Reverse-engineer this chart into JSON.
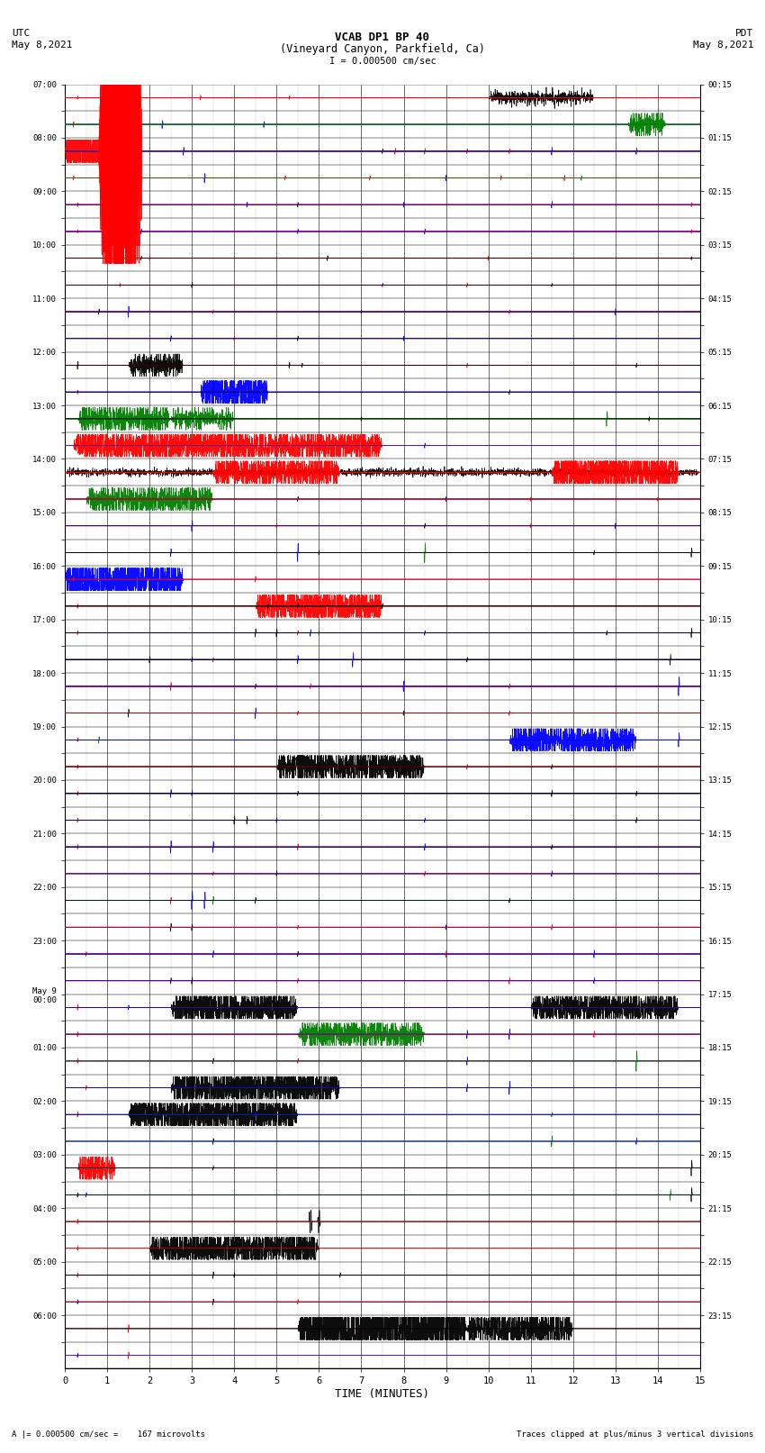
{
  "title_line1": "VCAB DP1 BP 40",
  "title_line2": "(Vineyard Canyon, Parkfield, Ca)",
  "scale_label": "I = 0.000500 cm/sec",
  "left_header_line1": "UTC",
  "left_header_line2": "May 8,2021",
  "right_header_line1": "PDT",
  "right_header_line2": "May 8,2021",
  "xlabel": "TIME (MINUTES)",
  "footer_left": "A |= 0.000500 cm/sec =    167 microvolts",
  "footer_right": "Traces clipped at plus/minus 3 vertical divisions",
  "x_ticks": [
    0,
    1,
    2,
    3,
    4,
    5,
    6,
    7,
    8,
    9,
    10,
    11,
    12,
    13,
    14,
    15
  ],
  "left_time_labels": [
    "07:00",
    "",
    "08:00",
    "",
    "09:00",
    "",
    "10:00",
    "",
    "11:00",
    "",
    "12:00",
    "",
    "13:00",
    "",
    "14:00",
    "",
    "15:00",
    "",
    "16:00",
    "",
    "17:00",
    "",
    "18:00",
    "",
    "19:00",
    "",
    "20:00",
    "",
    "21:00",
    "",
    "22:00",
    "",
    "23:00",
    "",
    "May 9\n00:00",
    "",
    "01:00",
    "",
    "02:00",
    "",
    "03:00",
    "",
    "04:00",
    "",
    "05:00",
    "",
    "06:00",
    ""
  ],
  "right_time_labels": [
    "00:15",
    "",
    "01:15",
    "",
    "02:15",
    "",
    "03:15",
    "",
    "04:15",
    "",
    "05:15",
    "",
    "06:15",
    "",
    "07:15",
    "",
    "08:15",
    "",
    "09:15",
    "",
    "10:15",
    "",
    "11:15",
    "",
    "12:15",
    "",
    "13:15",
    "",
    "14:15",
    "",
    "15:15",
    "",
    "16:15",
    "",
    "17:15",
    "",
    "18:15",
    "",
    "19:15",
    "",
    "20:15",
    "",
    "21:15",
    "",
    "22:15",
    "",
    "23:15",
    ""
  ],
  "num_rows": 48,
  "background_color": "#ffffff",
  "grid_color": "#000000",
  "minor_grid_color": "#888888",
  "trace_colors": [
    "black",
    "red",
    "green",
    "blue"
  ],
  "fig_width": 8.5,
  "fig_height": 16.13
}
